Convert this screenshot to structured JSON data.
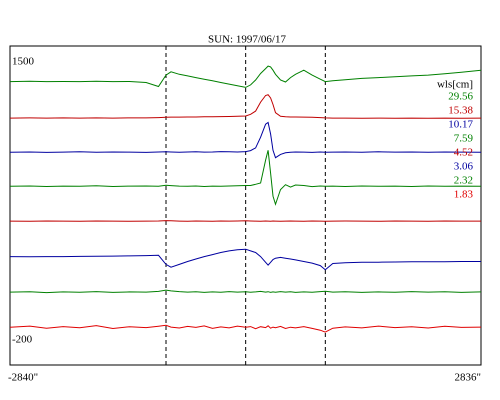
{
  "chart_data": {
    "type": "line",
    "title": "SUN: 1997/06/17",
    "legend_title": "wls[cm]",
    "x": [
      -2840,
      -2600,
      -2400,
      -2200,
      -2000,
      -1800,
      -1600,
      -1400,
      -1200,
      -1050,
      -960,
      -900,
      -800,
      -700,
      -600,
      -500,
      -400,
      -300,
      -200,
      -100,
      0,
      60,
      120,
      180,
      240,
      270,
      300,
      330,
      360,
      420,
      480,
      540,
      600,
      700,
      800,
      900,
      960,
      1050,
      1200,
      1400,
      1600,
      1800,
      2000,
      2200,
      2400,
      2600,
      2836
    ],
    "xlim": [
      -2840,
      2836
    ],
    "xticks": [
      {
        "value": -2840,
        "label": "-2840\""
      },
      {
        "value": 2836,
        "label": "2836\""
      }
    ],
    "ylim": [
      -353,
      1598
    ],
    "yticks": [
      1500,
      -200
    ],
    "markers_x": [
      -960,
      0,
      960
    ],
    "series": [
      {
        "name": "29.56",
        "color": "#008000",
        "values": [
          1380,
          1382,
          1380,
          1381,
          1380,
          1382,
          1380,
          1381,
          1375,
          1350,
          1420,
          1440,
          1425,
          1415,
          1405,
          1395,
          1385,
          1375,
          1365,
          1355,
          1345,
          1360,
          1390,
          1430,
          1460,
          1475,
          1470,
          1450,
          1425,
          1390,
          1378,
          1405,
          1425,
          1450,
          1420,
          1395,
          1380,
          1385,
          1392,
          1400,
          1405,
          1410,
          1415,
          1420,
          1428,
          1438,
          1450
        ]
      },
      {
        "name": "15.38",
        "color": "#c00000",
        "values": [
          1157,
          1158,
          1157,
          1158,
          1157,
          1158,
          1157,
          1158,
          1158,
          1160,
          1162,
          1163,
          1163,
          1164,
          1164,
          1165,
          1165,
          1166,
          1167,
          1168,
          1170,
          1180,
          1200,
          1255,
          1295,
          1300,
          1280,
          1240,
          1190,
          1168,
          1165,
          1164,
          1164,
          1163,
          1162,
          1160,
          1158,
          1157,
          1157,
          1156,
          1157,
          1156,
          1157,
          1156,
          1157,
          1156,
          1157
        ]
      },
      {
        "name": "10.17",
        "color": "#0000a0",
        "values": [
          948,
          950,
          947,
          949,
          951,
          948,
          950,
          949,
          947,
          950,
          951,
          950,
          948,
          950,
          951,
          949,
          950,
          952,
          951,
          950,
          952,
          958,
          975,
          1040,
          1120,
          1130,
          1060,
          960,
          915,
          935,
          945,
          948,
          950,
          949,
          947,
          950,
          948,
          949,
          950,
          948,
          951,
          949,
          950,
          948,
          950,
          949,
          948
        ]
      },
      {
        "name": "7.59",
        "color": "#008000",
        "values": [
          740,
          742,
          739,
          741,
          740,
          743,
          739,
          741,
          742,
          740,
          746,
          744,
          741,
          740,
          742,
          739,
          741,
          740,
          742,
          743,
          745,
          745,
          752,
          760,
          900,
          960,
          820,
          680,
          630,
          720,
          750,
          735,
          748,
          745,
          738,
          742,
          740,
          741,
          739,
          742,
          740,
          741,
          739,
          742,
          740,
          741,
          740
        ]
      },
      {
        "name": "4.52",
        "color": "#c00000",
        "values": [
          527,
          526,
          528,
          527,
          526,
          528,
          527,
          526,
          527,
          528,
          530,
          529,
          527,
          526,
          528,
          527,
          526,
          528,
          527,
          528,
          529,
          528,
          527,
          526,
          528,
          527,
          526,
          528,
          527,
          526,
          527,
          528,
          527,
          526,
          528,
          527,
          526,
          527,
          528,
          527,
          526,
          528,
          527,
          526,
          528,
          527,
          527
        ]
      },
      {
        "name": "3.06",
        "color": "#0000a0",
        "values": [
          310,
          309,
          310,
          310,
          311,
          312,
          313,
          314,
          316,
          318,
          262,
          245,
          262,
          280,
          295,
          310,
          322,
          335,
          345,
          352,
          355,
          345,
          335,
          310,
          275,
          258,
          275,
          292,
          300,
          305,
          300,
          295,
          290,
          280,
          270,
          255,
          230,
          268,
          272,
          275,
          276,
          277,
          278,
          278,
          279,
          280,
          280
        ]
      },
      {
        "name": "2.32",
        "color": "#008000",
        "values": [
          93,
          95,
          90,
          94,
          92,
          96,
          91,
          94,
          93,
          97,
          105,
          100,
          96,
          93,
          95,
          91,
          94,
          92,
          96,
          93,
          95,
          92,
          94,
          97,
          93,
          95,
          91,
          94,
          92,
          96,
          93,
          95,
          91,
          94,
          92,
          96,
          98,
          93,
          95,
          91,
          94,
          92,
          96,
          93,
          95,
          91,
          94
        ]
      },
      {
        "name": "1.83",
        "color": "#e00000",
        "values": [
          -122,
          -115,
          -128,
          -118,
          -125,
          -112,
          -130,
          -119,
          -124,
          -116,
          -110,
          -121,
          -127,
          -117,
          -123,
          -114,
          -129,
          -120,
          -126,
          -115,
          -122,
          -118,
          -131,
          -119,
          -124,
          -113,
          -128,
          -121,
          -125,
          -117,
          -130,
          -122,
          -126,
          -118,
          -129,
          -140,
          -152,
          -128,
          -120,
          -126,
          -115,
          -124,
          -119,
          -127,
          -116,
          -123,
          -121
        ]
      }
    ]
  }
}
